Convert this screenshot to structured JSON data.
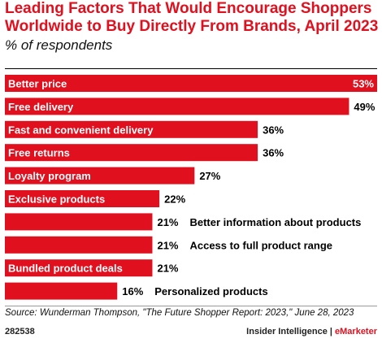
{
  "title": "Leading Factors That Would Encourage Shoppers Worldwide to Buy Directly From Brands, April 2023",
  "subtitle": "% of respondents",
  "source": "Source: Wunderman Thompson, \"The Future Shopper Report: 2023,\" June 28, 2023",
  "footer": {
    "id": "282538",
    "company": "Insider Intelligence | ",
    "brand": "eMarketer"
  },
  "colors": {
    "bar": "#e0101f",
    "title": "#e0101f"
  },
  "chart_data": {
    "type": "bar",
    "orientation": "horizontal",
    "categories": [
      "Better price",
      "Free delivery",
      "Fast and convenient delivery",
      "Free returns",
      "Loyalty program",
      "Exclusive products",
      "Better information about products",
      "Access to full product range",
      "Bundled product deals",
      "Personalized products"
    ],
    "values": [
      53,
      49,
      36,
      36,
      27,
      22,
      21,
      21,
      21,
      16
    ],
    "value_labels": [
      "53%",
      "49%",
      "36%",
      "36%",
      "27%",
      "22%",
      "21%",
      "21%",
      "21%",
      "16%"
    ],
    "title": "Leading Factors That Would Encourage Shoppers Worldwide to Buy Directly From Brands, April 2023",
    "xlabel": "",
    "ylabel": "",
    "xlim": [
      0,
      53
    ],
    "grid": false
  }
}
